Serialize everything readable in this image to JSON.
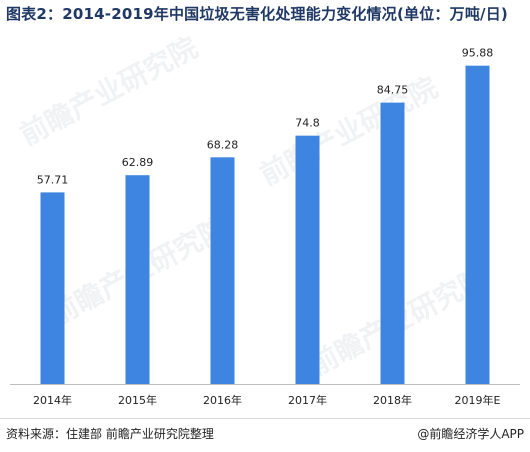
{
  "header": {
    "title": "图表2：2014-2019年中国垃圾无害化处理能力变化情况(单位：万吨/日)"
  },
  "footer": {
    "source": "资料来源：住建部 前瞻产业研究院整理",
    "brand": "@前瞻经济学人APP"
  },
  "watermark": {
    "text": "前瞻产业研究院"
  },
  "colors": {
    "bar": "#3d85e0",
    "axis": "#bfbfbf",
    "title": "#1f3864"
  },
  "chart_data": {
    "type": "bar",
    "title": "图表2：2014-2019年中国垃圾无害化处理能力变化情况(单位：万吨/日)",
    "categories": [
      "2014年",
      "2015年",
      "2016年",
      "2017年",
      "2018年",
      "2019年E"
    ],
    "values": [
      57.71,
      62.89,
      68.28,
      74.8,
      84.75,
      95.88
    ],
    "data_labels": [
      "57.71",
      "62.89",
      "68.28",
      "74.8",
      "84.75",
      "95.88"
    ],
    "xlabel": "",
    "ylabel": "",
    "ylim": [
      0,
      100
    ],
    "grid": false,
    "legend": "none"
  }
}
